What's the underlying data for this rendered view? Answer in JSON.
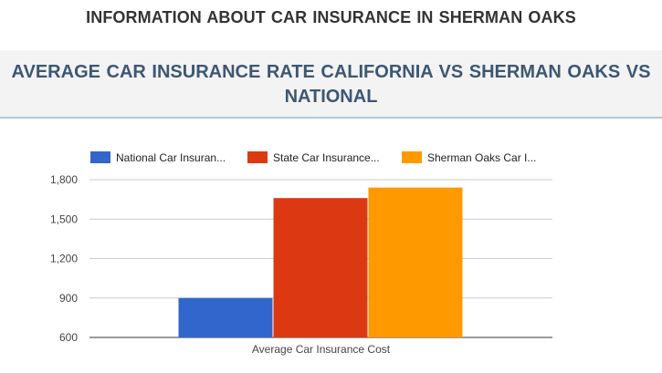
{
  "page": {
    "heading": "INFORMATION ABOUT CAR INSURANCE IN SHERMAN OAKS",
    "chart_heading_line1": "AVERAGE CAR INSURANCE RATE CALIFORNIA VS SHERMAN OAKS VS",
    "chart_heading_line2": "NATIONAL"
  },
  "colors": {
    "national": "#3366cc",
    "state": "#dc3912",
    "sherman_oaks": "#ff9900",
    "grid": "#cccccc",
    "axis_text": "#444444"
  },
  "chart_data": {
    "type": "bar",
    "categories": [
      "Average Car Insurance Cost"
    ],
    "series": [
      {
        "name": "National Car Insuran...",
        "values": [
          900
        ]
      },
      {
        "name": "State Car Insurance...",
        "values": [
          1660
        ]
      },
      {
        "name": "Sherman Oaks Car I...",
        "values": [
          1740
        ]
      }
    ],
    "y_ticks": [
      "600",
      "900",
      "1,200",
      "1,500",
      "1,800"
    ],
    "ylim": [
      600,
      1800
    ],
    "legend_position": "top",
    "grid": true
  }
}
